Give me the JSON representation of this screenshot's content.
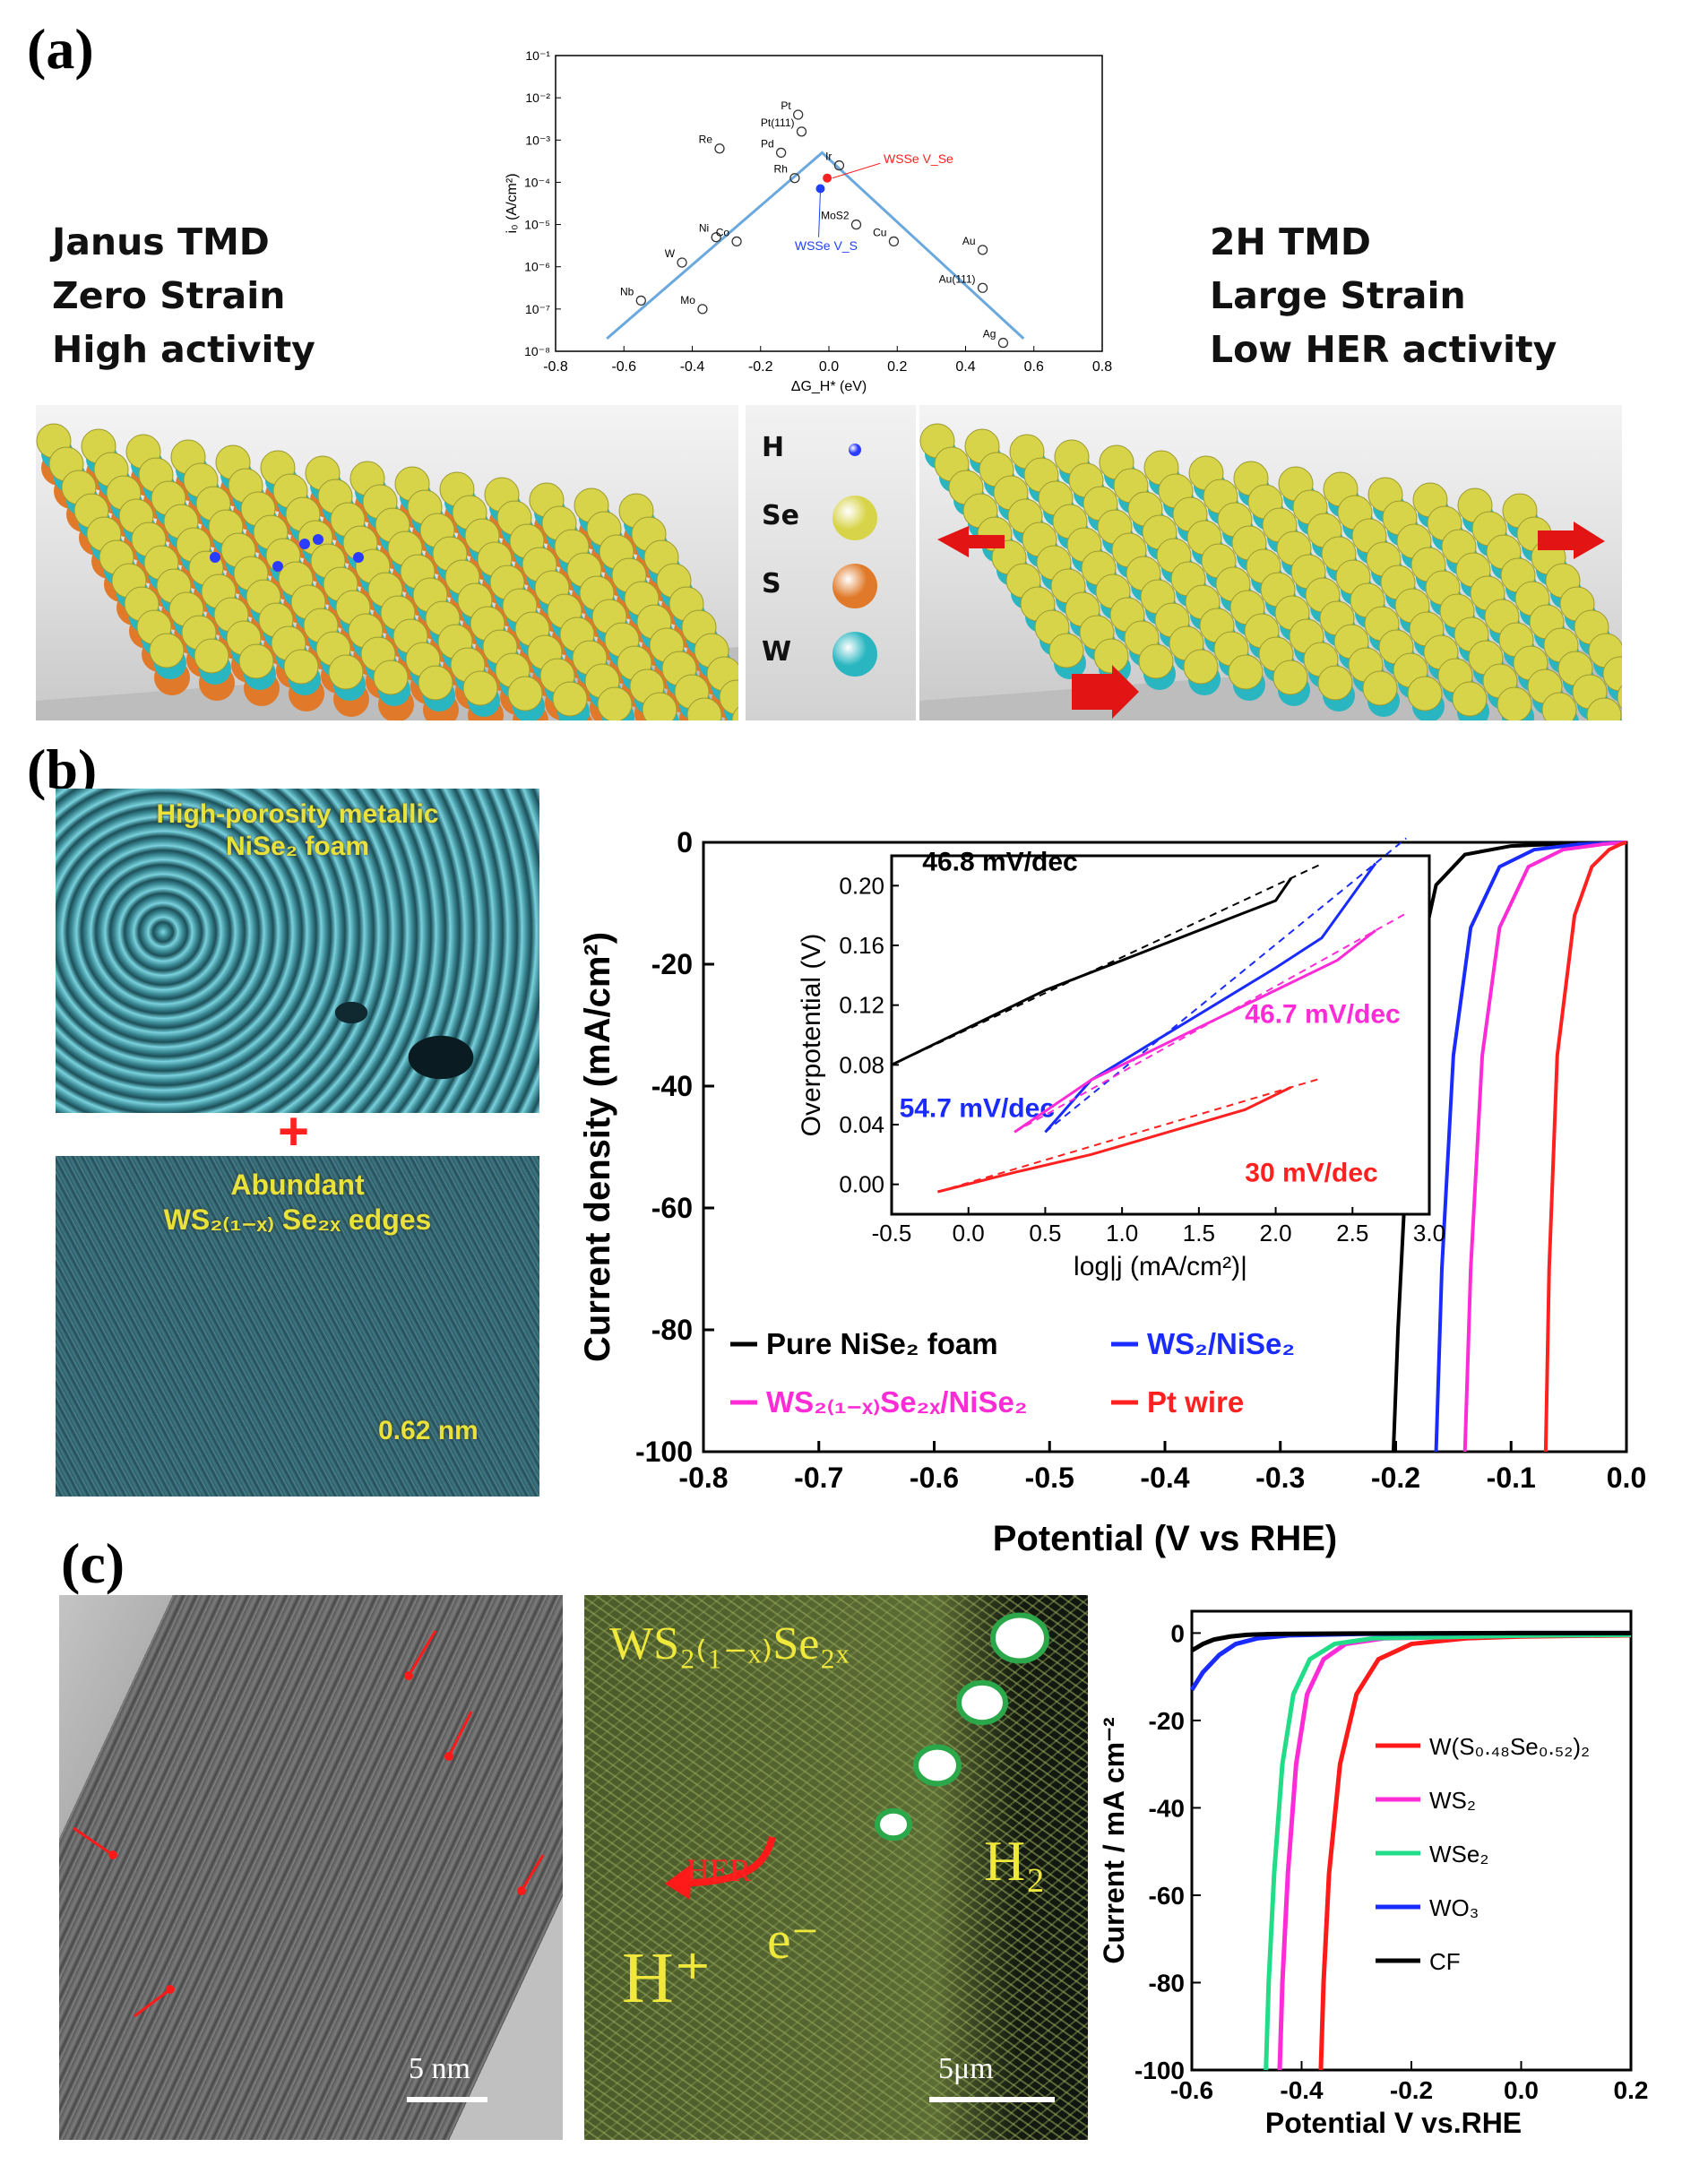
{
  "panel_a": {
    "label": "(a)",
    "left_text": [
      "Janus TMD",
      "Zero Strain",
      "High activity"
    ],
    "right_text": [
      "2H TMD",
      "Large Strain",
      "Low HER activity"
    ],
    "legend_atoms": [
      {
        "name": "H",
        "color": "#2a3cff"
      },
      {
        "name": "Se",
        "color": "#d8d44a"
      },
      {
        "name": "S",
        "color": "#e07a2a"
      },
      {
        "name": "W",
        "color": "#29b6c0"
      }
    ],
    "volcano": {
      "x_ticks": [
        "-0.8",
        "-0.6",
        "-0.4",
        "-0.2",
        "0.0",
        "0.2",
        "0.4",
        "0.6",
        "0.8"
      ],
      "y_ticks": [
        "10⁻¹",
        "10⁻²",
        "10⁻³",
        "10⁻⁴",
        "10⁻⁵",
        "10⁻⁶",
        "10⁻⁷",
        "10⁻⁸"
      ],
      "ylabel": "i₀ (A/cm²)",
      "xlabel": "ΔG_H* (eV)",
      "points": [
        {
          "label": "Pt",
          "x": -0.09,
          "y": -2.4
        },
        {
          "label": "Pt(111)",
          "x": -0.08,
          "y": -2.8
        },
        {
          "label": "Re",
          "x": -0.32,
          "y": -3.2
        },
        {
          "label": "Pd",
          "x": -0.14,
          "y": -3.3
        },
        {
          "label": "Rh",
          "x": -0.1,
          "y": -3.9
        },
        {
          "label": "Ir",
          "x": 0.03,
          "y": -3.6
        },
        {
          "label": "Ni",
          "x": -0.33,
          "y": -5.3
        },
        {
          "label": "Co",
          "x": -0.27,
          "y": -5.4
        },
        {
          "label": "W",
          "x": -0.43,
          "y": -5.9
        },
        {
          "label": "Nb",
          "x": -0.55,
          "y": -6.8
        },
        {
          "label": "Mo",
          "x": -0.37,
          "y": -7.0
        },
        {
          "label": "MoS2",
          "x": 0.08,
          "y": -5.0
        },
        {
          "label": "Cu",
          "x": 0.19,
          "y": -5.4
        },
        {
          "label": "Au",
          "x": 0.45,
          "y": -5.6
        },
        {
          "label": "Au(111)",
          "x": 0.45,
          "y": -6.5
        },
        {
          "label": "Ag",
          "x": 0.51,
          "y": -7.8
        }
      ],
      "annot_red": "WSSe V_Se",
      "annot_blue": "WSSe V_S"
    }
  },
  "panel_b": {
    "label": "(b)",
    "sem_text_1": "High-porosity metallic",
    "sem_text_2": "NiSe₂ foam",
    "plus": "+",
    "tem_text_1": "Abundant",
    "tem_text_2": "WS₂₍₁₋ₓ₎ Se₂ₓ edges",
    "scale_text": "0.62 nm",
    "chart_data": {
      "type": "line",
      "xlabel": "Potential (V vs RHE)",
      "ylabel": "Current density (mA/cm²)",
      "xlim": [
        -0.8,
        0.0
      ],
      "ylim": [
        -100,
        0
      ],
      "x_ticks": [
        "-0.8",
        "-0.7",
        "-0.6",
        "-0.5",
        "-0.4",
        "-0.3",
        "-0.2",
        "-0.1",
        "0.0"
      ],
      "y_ticks": [
        "0",
        "-20",
        "-40",
        "-60",
        "-80",
        "-100"
      ],
      "series": [
        {
          "name": "Pure NiSe₂ foam",
          "color": "#000000",
          "x": [
            -0.202,
            -0.198,
            -0.19,
            -0.18,
            -0.165,
            -0.14,
            -0.1,
            -0.05,
            0.0
          ],
          "y": [
            -100,
            -80,
            -50,
            -20,
            -7,
            -2,
            -0.6,
            -0.2,
            0
          ]
        },
        {
          "name": "WS₂/NiSe₂",
          "color": "#1a2bff",
          "x": [
            -0.165,
            -0.16,
            -0.15,
            -0.135,
            -0.11,
            -0.08,
            -0.04,
            0.0
          ],
          "y": [
            -100,
            -70,
            -35,
            -14,
            -4,
            -1.2,
            -0.3,
            0
          ]
        },
        {
          "name": "WS₂₍₁₋ₓ₎Se₂ₓ/NiSe₂",
          "color": "#ff2bd6",
          "x": [
            -0.14,
            -0.135,
            -0.125,
            -0.11,
            -0.085,
            -0.055,
            -0.02,
            0.0
          ],
          "y": [
            -100,
            -70,
            -35,
            -14,
            -4,
            -1.2,
            -0.3,
            0
          ]
        },
        {
          "name": "Pt wire",
          "color": "#ff2020",
          "x": [
            -0.07,
            -0.067,
            -0.06,
            -0.045,
            -0.03,
            -0.015,
            -0.005,
            0.0
          ],
          "y": [
            -100,
            -70,
            -35,
            -12,
            -4,
            -1.2,
            -0.3,
            0
          ]
        }
      ],
      "inset": {
        "xlabel": "log|j (mA/cm²)|",
        "ylabel": "Overpotential (V)",
        "xlim": [
          -0.5,
          3.0
        ],
        "ylim": [
          -0.02,
          0.22
        ],
        "x_ticks": [
          "-0.5",
          "0.0",
          "0.5",
          "1.0",
          "1.5",
          "2.0",
          "2.5",
          "3.0"
        ],
        "y_ticks": [
          "0.20",
          "0.16",
          "0.12",
          "0.08",
          "0.04",
          "0.00"
        ],
        "series": [
          {
            "name": "Pure NiSe₂ foam",
            "color": "#000000",
            "x": [
              -0.5,
              0.0,
              0.5,
              1.0,
              1.5,
              2.0,
              2.1
            ],
            "y": [
              0.08,
              0.105,
              0.13,
              0.15,
              0.17,
              0.19,
              0.205
            ],
            "slope_label": "46.8 mV/dec"
          },
          {
            "name": "WS₂/NiSe₂",
            "color": "#1a2bff",
            "x": [
              0.5,
              0.8,
              1.2,
              1.6,
              2.0,
              2.3,
              2.65
            ],
            "y": [
              0.035,
              0.07,
              0.095,
              0.12,
              0.145,
              0.165,
              0.215
            ],
            "slope_label": "54.7 mV/dec"
          },
          {
            "name": "WS₂₍₁₋ₓ₎Se₂ₓ/NiSe₂",
            "color": "#ff2bd6",
            "x": [
              0.3,
              0.8,
              1.2,
              1.6,
              2.0,
              2.4,
              2.65
            ],
            "y": [
              0.035,
              0.07,
              0.09,
              0.11,
              0.13,
              0.15,
              0.17
            ],
            "slope_label": "46.7 mV/dec"
          },
          {
            "name": "Pt wire",
            "color": "#ff2020",
            "x": [
              -0.2,
              0.3,
              0.8,
              1.3,
              1.8,
              2.1
            ],
            "y": [
              -0.005,
              0.008,
              0.02,
              0.035,
              0.05,
              0.065
            ],
            "slope_label": "30 mV/dec"
          }
        ]
      }
    }
  },
  "panel_c": {
    "label": "(c)",
    "tem_scale": "5 nm",
    "sem_title": "WS₂₍₁₋ₓ₎Se₂ₓ",
    "sem_h2": "H₂",
    "sem_her": "HER",
    "sem_hplus": "H⁺",
    "sem_e": "e⁻",
    "sem_scale": "5μm",
    "chart_data": {
      "type": "line",
      "xlabel": "Potential V vs.RHE",
      "ylabel": "Current / mA cm⁻²",
      "xlim": [
        -0.6,
        0.2
      ],
      "ylim": [
        -100,
        5
      ],
      "x_ticks": [
        "-0.6",
        "-0.4",
        "-0.2",
        "0.0",
        "0.2"
      ],
      "y_ticks": [
        "0",
        "-20",
        "-40",
        "-60",
        "-80",
        "-100"
      ],
      "series": [
        {
          "name": "W(S₀.₄₈Se₀.₅₂)₂",
          "color": "#ff1a1a",
          "x": [
            -0.365,
            -0.36,
            -0.35,
            -0.33,
            -0.3,
            -0.26,
            -0.2,
            -0.1,
            0.0,
            0.2
          ],
          "y": [
            -100,
            -80,
            -55,
            -30,
            -14,
            -6,
            -2.5,
            -1.2,
            -0.8,
            -0.5
          ]
        },
        {
          "name": "WS₂",
          "color": "#ff2bd6",
          "x": [
            -0.44,
            -0.435,
            -0.425,
            -0.41,
            -0.39,
            -0.36,
            -0.32,
            -0.25,
            0.0,
            0.2
          ],
          "y": [
            -100,
            -80,
            -55,
            -30,
            -14,
            -6,
            -2.5,
            -1.2,
            -0.6,
            -0.4
          ]
        },
        {
          "name": "WSe₂",
          "color": "#22dd88",
          "x": [
            -0.465,
            -0.46,
            -0.45,
            -0.435,
            -0.415,
            -0.385,
            -0.34,
            -0.27,
            0.0,
            0.2
          ],
          "y": [
            -100,
            -80,
            -55,
            -30,
            -14,
            -6,
            -2.5,
            -1.2,
            -0.6,
            -0.4
          ]
        },
        {
          "name": "WO₃",
          "color": "#1a2bff",
          "x": [
            -0.6,
            -0.58,
            -0.55,
            -0.52,
            -0.48,
            -0.42,
            -0.3,
            0.0,
            0.2
          ],
          "y": [
            -13,
            -9,
            -5,
            -2.5,
            -1.2,
            -0.5,
            -0.2,
            0,
            0
          ]
        },
        {
          "name": "CF",
          "color": "#000000",
          "x": [
            -0.6,
            -0.58,
            -0.56,
            -0.53,
            -0.5,
            -0.45,
            -0.3,
            0.0,
            0.2
          ],
          "y": [
            -4,
            -2.5,
            -1.5,
            -0.8,
            -0.4,
            -0.2,
            -0.1,
            0,
            0
          ]
        }
      ]
    }
  }
}
